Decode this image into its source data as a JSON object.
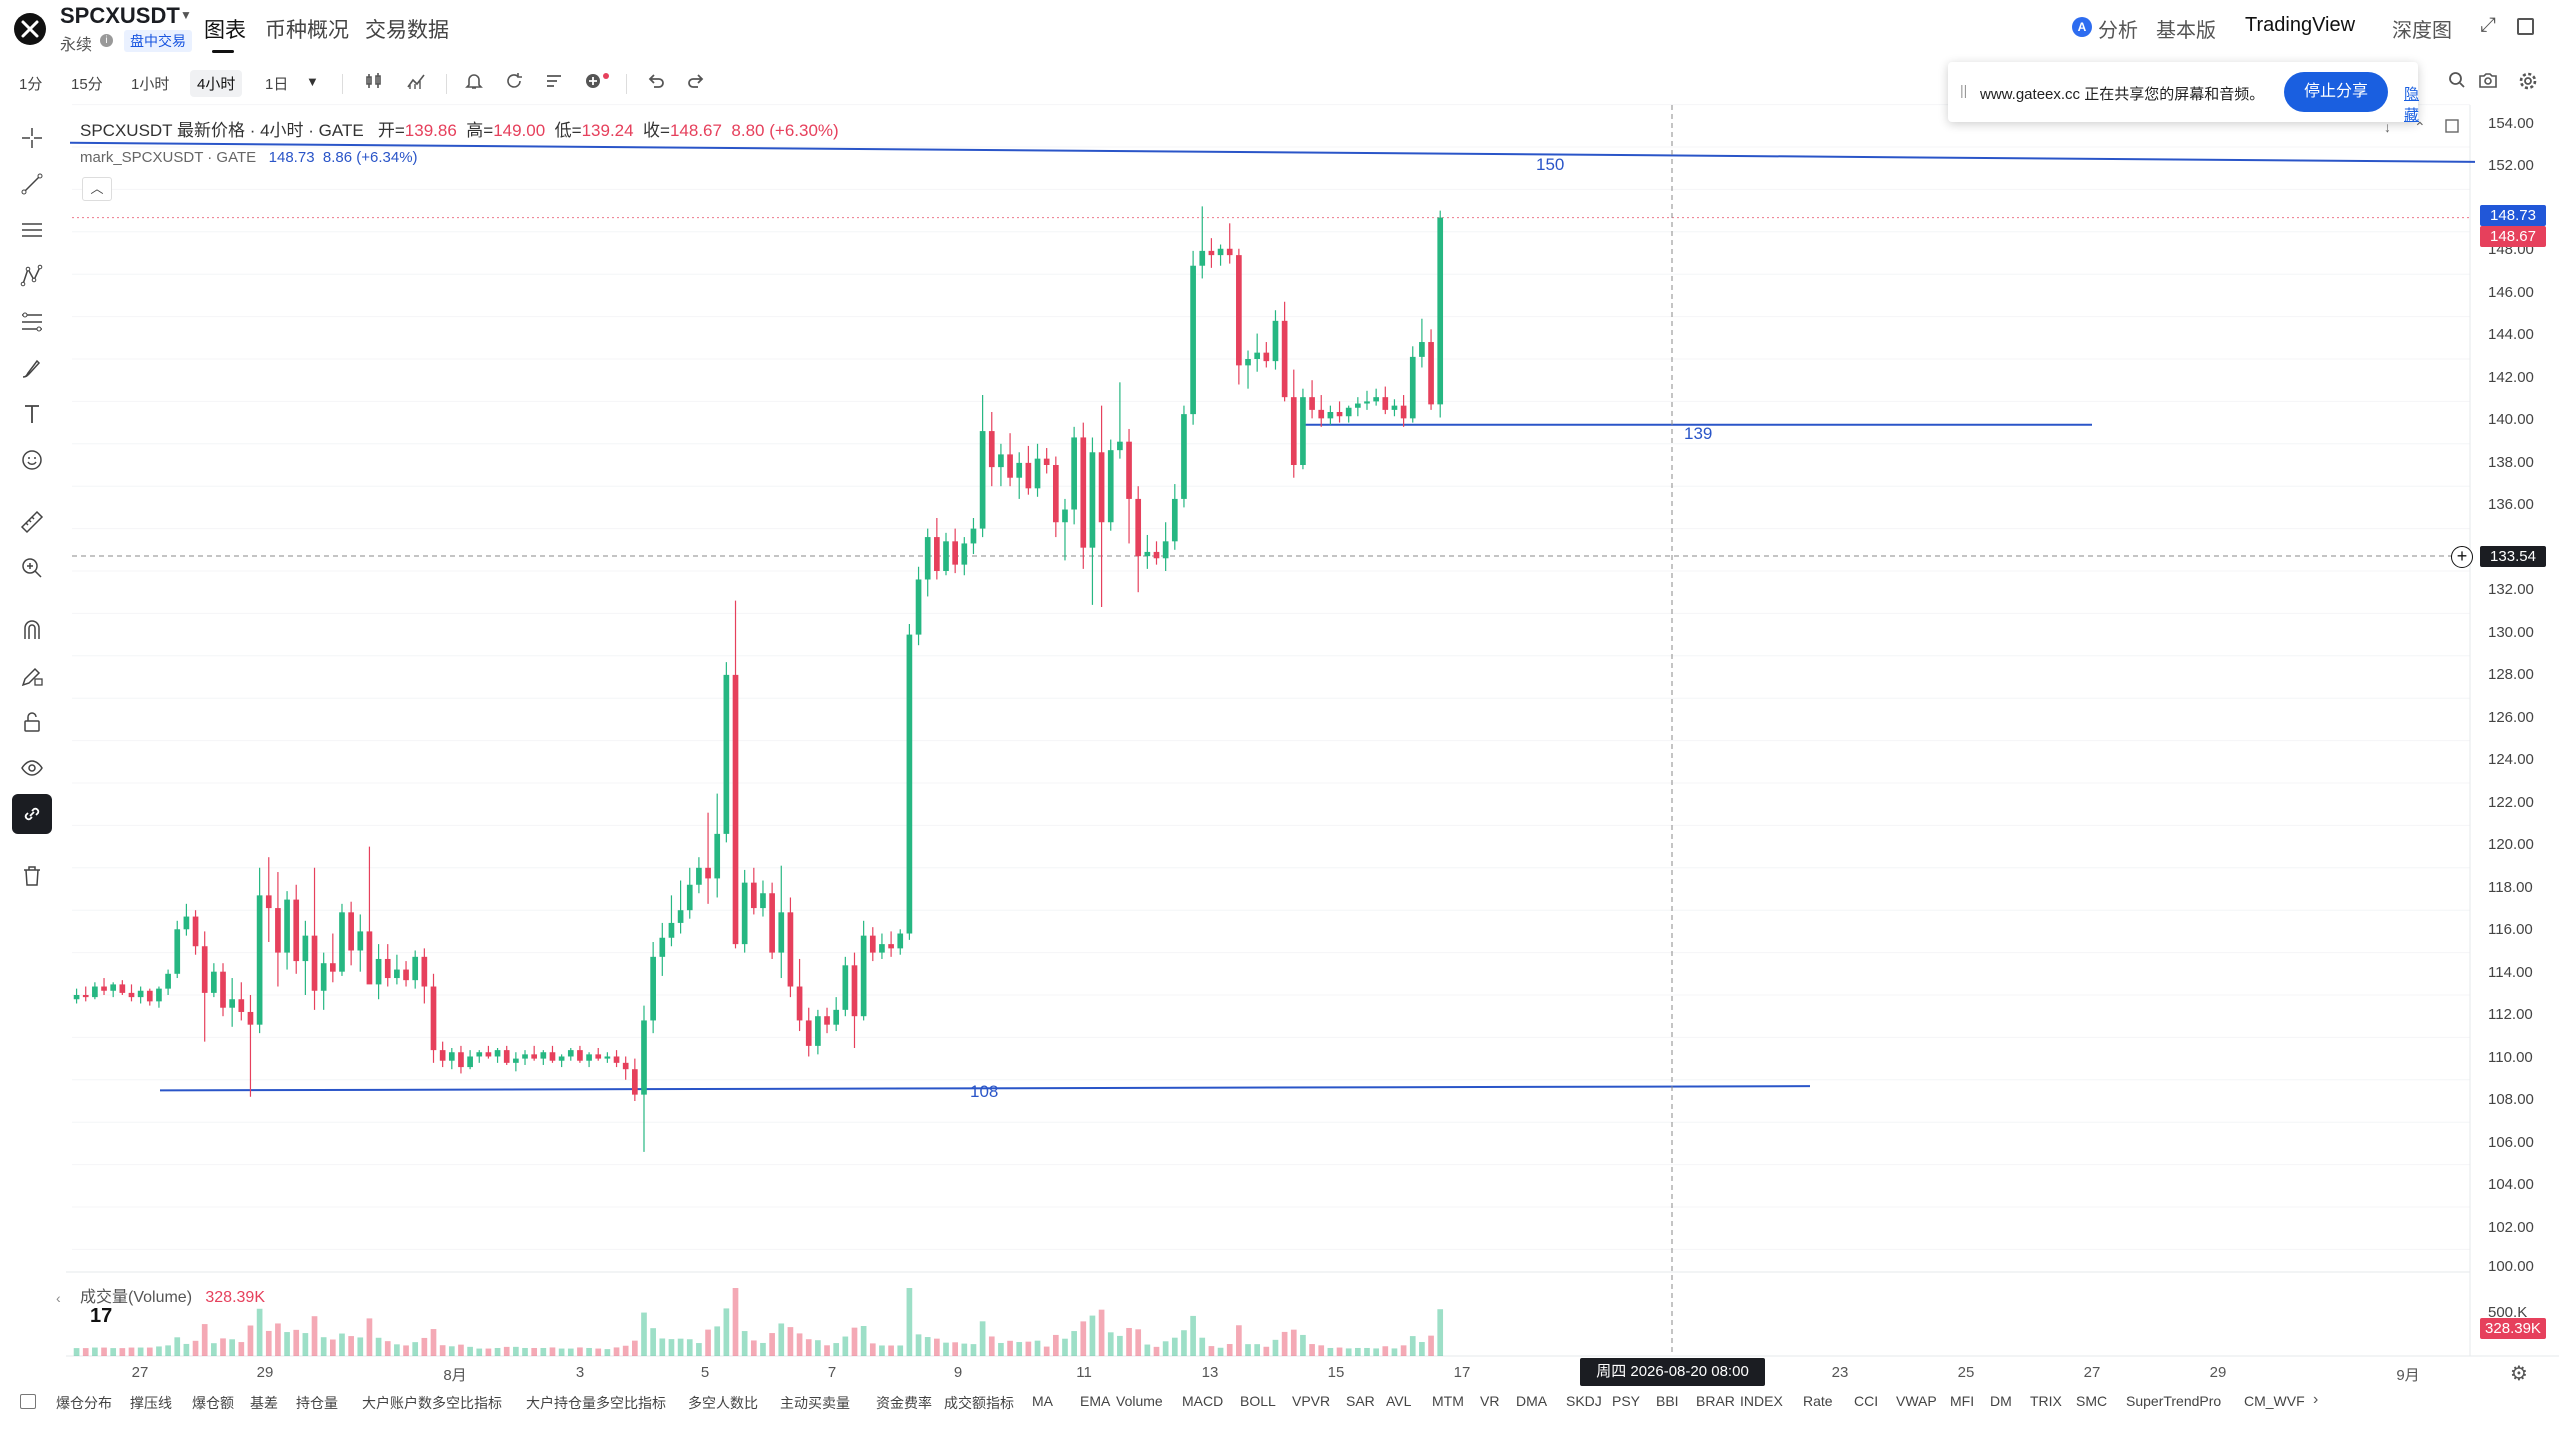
{
  "header": {
    "symbol": "SPCXUSDT",
    "subtitle": "永续",
    "badge": "盘中交易",
    "tabs": [
      "图表",
      "币种概况",
      "交易数据"
    ],
    "right": {
      "analysis": "分析",
      "basic": "基本版",
      "tradingview": "TradingView",
      "depth": "深度图"
    }
  },
  "toolbar": {
    "timeframes": [
      "1分",
      "15分",
      "1小时",
      "4小时",
      "1日"
    ],
    "selected_timeframe": "4小时"
  },
  "share_banner": {
    "text": "www.gateex.cc 正在共享您的屏幕和音频。",
    "stop_label": "停止分享",
    "hide_label": "隐藏"
  },
  "drawing_tools": [
    "crosshair-icon",
    "trend-line-icon",
    "horizontal-lines-icon",
    "pattern-icon",
    "fib-icon",
    "brush-icon",
    "text-icon",
    "emoji-icon",
    "ruler-icon",
    "zoom-in-icon",
    "magnet-icon",
    "pencil-lock-icon",
    "lock-icon",
    "eye-icon",
    "link-icon",
    "trash-icon"
  ],
  "legend": {
    "title": "SPCXUSDT 最新价格 · 4小时 · GATE",
    "open_label": "开=",
    "open": "139.86",
    "high_label": "高=",
    "high": "149.00",
    "low_label": "低=",
    "low": "139.24",
    "close_label": "收=",
    "close": "148.67",
    "change": "8.80 (+6.30%)",
    "mark_title": "mark_SPCXUSDT · GATE",
    "mark_value": "148.73",
    "mark_change": "8.86 (+6.34%)"
  },
  "volume_legend": {
    "label": "成交量(Volume)",
    "value": "328.39K"
  },
  "price_scale": {
    "labels": [
      "154.00",
      "152.00",
      "148.00",
      "146.00",
      "144.00",
      "142.00",
      "140.00",
      "138.00",
      "136.00",
      "132.00",
      "130.00",
      "128.00",
      "126.00",
      "124.00",
      "122.00",
      "120.00",
      "118.00",
      "116.00",
      "114.00",
      "112.00",
      "110.00",
      "108.00",
      "106.00",
      "104.00",
      "102.00",
      "100.00"
    ],
    "mark_tag": "148.73",
    "last_tag": "148.67",
    "crosshair_tag": "133.54",
    "volume_scale": "500.K",
    "volume_tag": "328.39K"
  },
  "time_axis": {
    "labels": [
      "27",
      "29",
      "8月",
      "3",
      "5",
      "7",
      "9",
      "11",
      "13",
      "15",
      "17",
      "23",
      "25",
      "27",
      "29",
      "9月"
    ],
    "crosshair": "周四 2026-08-20   08:00"
  },
  "horizontal_lines": [
    {
      "label": "150",
      "start_price": 152.2,
      "end_price": 151.3
    },
    {
      "label": "139",
      "price": 138.9
    },
    {
      "label": "108",
      "start_price": 107.5,
      "end_price": 107.7
    }
  ],
  "indicators": [
    "爆仓分布",
    "撑压线",
    "爆仓额",
    "基差",
    "持仓量",
    "大户账户数多空比指标",
    "大户持仓量多空比指标",
    "多空人数比",
    "主动买卖量",
    "资金费率",
    "成交额指标",
    "MA",
    "EMA",
    "Volume",
    "MACD",
    "BOLL",
    "VPVR",
    "SAR",
    "AVL",
    "MTM",
    "VR",
    "DMA",
    "SKDJ",
    "PSY",
    "BBI",
    "BRAR",
    "INDEX",
    "Rate",
    "CCI",
    "VWAP",
    "MFI",
    "DM",
    "TRIX",
    "SMC",
    "SuperTrendPro",
    "CM_WVF"
  ],
  "colors": {
    "up": "#26b782",
    "down": "#e6405c",
    "line": "#2a55c8",
    "accent": "#1a5fe0"
  },
  "chart_data": {
    "type": "candlestick",
    "interval": "4小时",
    "ylim": [
      100,
      154
    ],
    "candles_ohlc": [
      [
        111.8,
        112.3,
        111.6,
        112.0
      ],
      [
        112.0,
        112.4,
        111.7,
        111.9
      ],
      [
        111.9,
        112.6,
        111.8,
        112.4
      ],
      [
        112.4,
        112.8,
        112.0,
        112.2
      ],
      [
        112.2,
        112.6,
        111.9,
        112.5
      ],
      [
        112.5,
        112.7,
        112.0,
        112.1
      ],
      [
        112.1,
        112.5,
        111.7,
        111.9
      ],
      [
        111.9,
        112.4,
        111.6,
        112.2
      ],
      [
        112.2,
        112.3,
        111.5,
        111.7
      ],
      [
        111.7,
        112.4,
        111.4,
        112.3
      ],
      [
        112.3,
        113.2,
        112.0,
        113.0
      ],
      [
        113.0,
        115.5,
        112.8,
        115.1
      ],
      [
        115.1,
        116.3,
        114.8,
        115.7
      ],
      [
        115.7,
        116.0,
        113.9,
        114.3
      ],
      [
        114.3,
        115.0,
        109.8,
        112.1
      ],
      [
        112.1,
        113.5,
        111.9,
        113.1
      ],
      [
        113.1,
        113.5,
        111.0,
        111.4
      ],
      [
        111.4,
        112.8,
        110.5,
        111.8
      ],
      [
        111.8,
        112.6,
        110.8,
        111.2
      ],
      [
        111.2,
        112.0,
        107.2,
        110.6
      ],
      [
        110.6,
        118.0,
        110.2,
        116.7
      ],
      [
        116.7,
        118.5,
        114.5,
        116.1
      ],
      [
        116.1,
        117.8,
        112.4,
        114.0
      ],
      [
        114.0,
        116.9,
        113.2,
        116.5
      ],
      [
        116.5,
        117.2,
        113.0,
        113.6
      ],
      [
        113.6,
        115.5,
        112.0,
        114.8
      ],
      [
        114.8,
        118.0,
        111.3,
        112.2
      ],
      [
        112.2,
        114.0,
        111.3,
        113.5
      ],
      [
        113.5,
        114.9,
        112.6,
        113.1
      ],
      [
        113.1,
        116.3,
        112.9,
        115.9
      ],
      [
        115.9,
        116.4,
        113.4,
        114.1
      ],
      [
        114.1,
        115.8,
        113.1,
        115.0
      ],
      [
        115.0,
        119.0,
        112.7,
        112.5
      ],
      [
        112.5,
        114.4,
        111.8,
        113.7
      ],
      [
        113.7,
        114.4,
        112.4,
        112.8
      ],
      [
        112.8,
        113.9,
        112.5,
        113.2
      ],
      [
        113.2,
        113.6,
        112.4,
        112.7
      ],
      [
        112.7,
        114.1,
        112.3,
        113.8
      ],
      [
        113.8,
        114.2,
        111.6,
        112.4
      ],
      [
        112.4,
        113.0,
        108.8,
        109.4
      ],
      [
        109.4,
        109.8,
        108.6,
        108.9
      ],
      [
        108.9,
        109.5,
        108.5,
        109.3
      ],
      [
        109.3,
        109.6,
        108.3,
        108.6
      ],
      [
        108.6,
        109.4,
        108.5,
        109.1
      ],
      [
        109.1,
        109.4,
        108.8,
        109.3
      ],
      [
        109.3,
        109.6,
        109.0,
        109.1
      ],
      [
        109.1,
        109.5,
        108.8,
        109.4
      ],
      [
        109.4,
        109.6,
        108.7,
        108.8
      ],
      [
        108.8,
        109.3,
        108.4,
        109.0
      ],
      [
        109.0,
        109.4,
        108.7,
        109.2
      ],
      [
        109.2,
        109.6,
        108.9,
        109.0
      ],
      [
        109.0,
        109.4,
        108.7,
        109.3
      ],
      [
        109.3,
        109.6,
        108.8,
        108.9
      ],
      [
        108.9,
        109.2,
        108.6,
        109.1
      ],
      [
        109.1,
        109.5,
        108.9,
        109.4
      ],
      [
        109.4,
        109.6,
        108.8,
        108.9
      ],
      [
        108.9,
        109.3,
        108.6,
        109.2
      ],
      [
        109.2,
        109.5,
        108.9,
        109.0
      ],
      [
        109.0,
        109.3,
        108.8,
        109.1
      ],
      [
        109.1,
        109.4,
        108.6,
        108.8
      ],
      [
        108.8,
        109.1,
        108.0,
        108.5
      ],
      [
        108.5,
        109.0,
        107.0,
        107.3
      ],
      [
        107.3,
        111.5,
        104.6,
        110.8
      ],
      [
        110.8,
        114.5,
        110.2,
        113.8
      ],
      [
        113.8,
        115.4,
        112.9,
        114.7
      ],
      [
        114.7,
        116.7,
        114.3,
        115.4
      ],
      [
        115.4,
        117.4,
        114.9,
        116.0
      ],
      [
        116.0,
        118.0,
        115.6,
        117.2
      ],
      [
        117.2,
        118.5,
        116.8,
        118.0
      ],
      [
        118.0,
        120.6,
        116.3,
        117.5
      ],
      [
        117.5,
        121.5,
        116.6,
        119.6
      ],
      [
        119.6,
        127.7,
        119.2,
        127.1
      ],
      [
        127.1,
        130.6,
        114.2,
        114.4
      ],
      [
        114.4,
        117.9,
        114.0,
        117.3
      ],
      [
        117.3,
        118.0,
        115.8,
        116.1
      ],
      [
        116.1,
        117.4,
        115.7,
        116.8
      ],
      [
        116.8,
        117.3,
        113.7,
        114.0
      ],
      [
        114.0,
        118.1,
        112.8,
        115.9
      ],
      [
        115.9,
        116.6,
        111.9,
        112.4
      ],
      [
        112.4,
        113.7,
        110.3,
        110.8
      ],
      [
        110.8,
        111.4,
        109.1,
        109.6
      ],
      [
        109.6,
        111.3,
        109.2,
        111.0
      ],
      [
        111.0,
        111.4,
        110.2,
        110.6
      ],
      [
        110.6,
        111.9,
        110.3,
        111.3
      ],
      [
        111.3,
        113.8,
        111.0,
        113.4
      ],
      [
        113.4,
        114.0,
        109.5,
        111.0
      ],
      [
        111.0,
        115.5,
        110.8,
        114.8
      ],
      [
        114.8,
        115.2,
        113.6,
        114.0
      ],
      [
        114.0,
        114.9,
        113.7,
        114.4
      ],
      [
        114.4,
        115.0,
        113.8,
        114.2
      ],
      [
        114.2,
        115.1,
        113.9,
        114.9
      ],
      [
        114.9,
        129.5,
        114.6,
        129.0
      ],
      [
        129.0,
        132.2,
        128.5,
        131.6
      ],
      [
        131.6,
        134.0,
        130.8,
        133.6
      ],
      [
        133.6,
        134.5,
        131.6,
        132.0
      ],
      [
        132.0,
        133.8,
        131.8,
        133.4
      ],
      [
        133.4,
        134.0,
        131.9,
        132.3
      ],
      [
        132.3,
        133.6,
        131.8,
        133.3
      ],
      [
        133.3,
        134.5,
        132.8,
        134.0
      ],
      [
        134.0,
        140.3,
        133.6,
        138.6
      ],
      [
        138.6,
        139.5,
        136.0,
        136.9
      ],
      [
        136.9,
        138.0,
        136.0,
        137.5
      ],
      [
        137.5,
        138.5,
        136.0,
        136.4
      ],
      [
        136.4,
        137.6,
        135.4,
        137.1
      ],
      [
        137.1,
        137.9,
        135.6,
        135.9
      ],
      [
        135.9,
        138.0,
        135.5,
        137.3
      ],
      [
        137.3,
        137.8,
        136.6,
        137.0
      ],
      [
        137.0,
        137.4,
        133.6,
        134.3
      ],
      [
        134.3,
        135.4,
        132.5,
        134.9
      ],
      [
        134.9,
        138.8,
        134.2,
        138.3
      ],
      [
        138.3,
        139.0,
        132.1,
        133.1
      ],
      [
        133.1,
        138.3,
        130.4,
        137.6
      ],
      [
        137.6,
        139.8,
        130.3,
        134.3
      ],
      [
        134.3,
        138.2,
        133.9,
        137.7
      ],
      [
        137.7,
        140.9,
        137.3,
        138.1
      ],
      [
        138.1,
        138.7,
        133.3,
        135.4
      ],
      [
        135.4,
        136.0,
        131.0,
        132.7
      ],
      [
        132.7,
        133.7,
        132.1,
        132.9
      ],
      [
        132.9,
        133.4,
        132.3,
        132.6
      ],
      [
        132.6,
        134.3,
        132.0,
        133.4
      ],
      [
        133.4,
        136.1,
        133.0,
        135.4
      ],
      [
        135.4,
        139.8,
        135.0,
        139.4
      ],
      [
        139.4,
        147.1,
        138.9,
        146.4
      ],
      [
        146.4,
        149.2,
        145.8,
        147.1
      ],
      [
        147.1,
        147.7,
        146.3,
        146.9
      ],
      [
        146.9,
        147.4,
        146.4,
        147.2
      ],
      [
        147.2,
        148.4,
        146.5,
        146.9
      ],
      [
        146.9,
        147.2,
        140.8,
        141.7
      ],
      [
        141.7,
        142.4,
        140.6,
        142.0
      ],
      [
        142.0,
        143.2,
        141.4,
        142.3
      ],
      [
        142.3,
        142.8,
        141.6,
        141.9
      ],
      [
        141.9,
        144.3,
        141.5,
        143.8
      ],
      [
        143.8,
        144.7,
        140.0,
        140.2
      ],
      [
        140.2,
        141.5,
        136.4,
        137.0
      ],
      [
        137.0,
        140.6,
        136.8,
        140.2
      ],
      [
        140.2,
        141.0,
        139.2,
        139.6
      ],
      [
        139.6,
        140.3,
        138.8,
        139.2
      ],
      [
        139.2,
        139.8,
        138.9,
        139.5
      ],
      [
        139.5,
        140.0,
        139.0,
        139.3
      ],
      [
        139.3,
        139.8,
        139.0,
        139.7
      ],
      [
        139.7,
        140.2,
        139.3,
        139.9
      ],
      [
        139.9,
        140.5,
        139.6,
        140.0
      ],
      [
        140.0,
        140.6,
        139.8,
        140.2
      ],
      [
        140.2,
        140.7,
        139.4,
        139.6
      ],
      [
        139.6,
        140.1,
        139.3,
        139.8
      ],
      [
        139.8,
        140.3,
        138.8,
        139.2
      ],
      [
        139.2,
        142.6,
        139.0,
        142.1
      ],
      [
        142.1,
        143.9,
        141.6,
        142.8
      ],
      [
        142.8,
        143.4,
        139.6,
        139.86
      ],
      [
        139.86,
        149.0,
        139.24,
        148.67
      ]
    ],
    "volume_scale_max": 500000,
    "last_volume": 328390
  }
}
